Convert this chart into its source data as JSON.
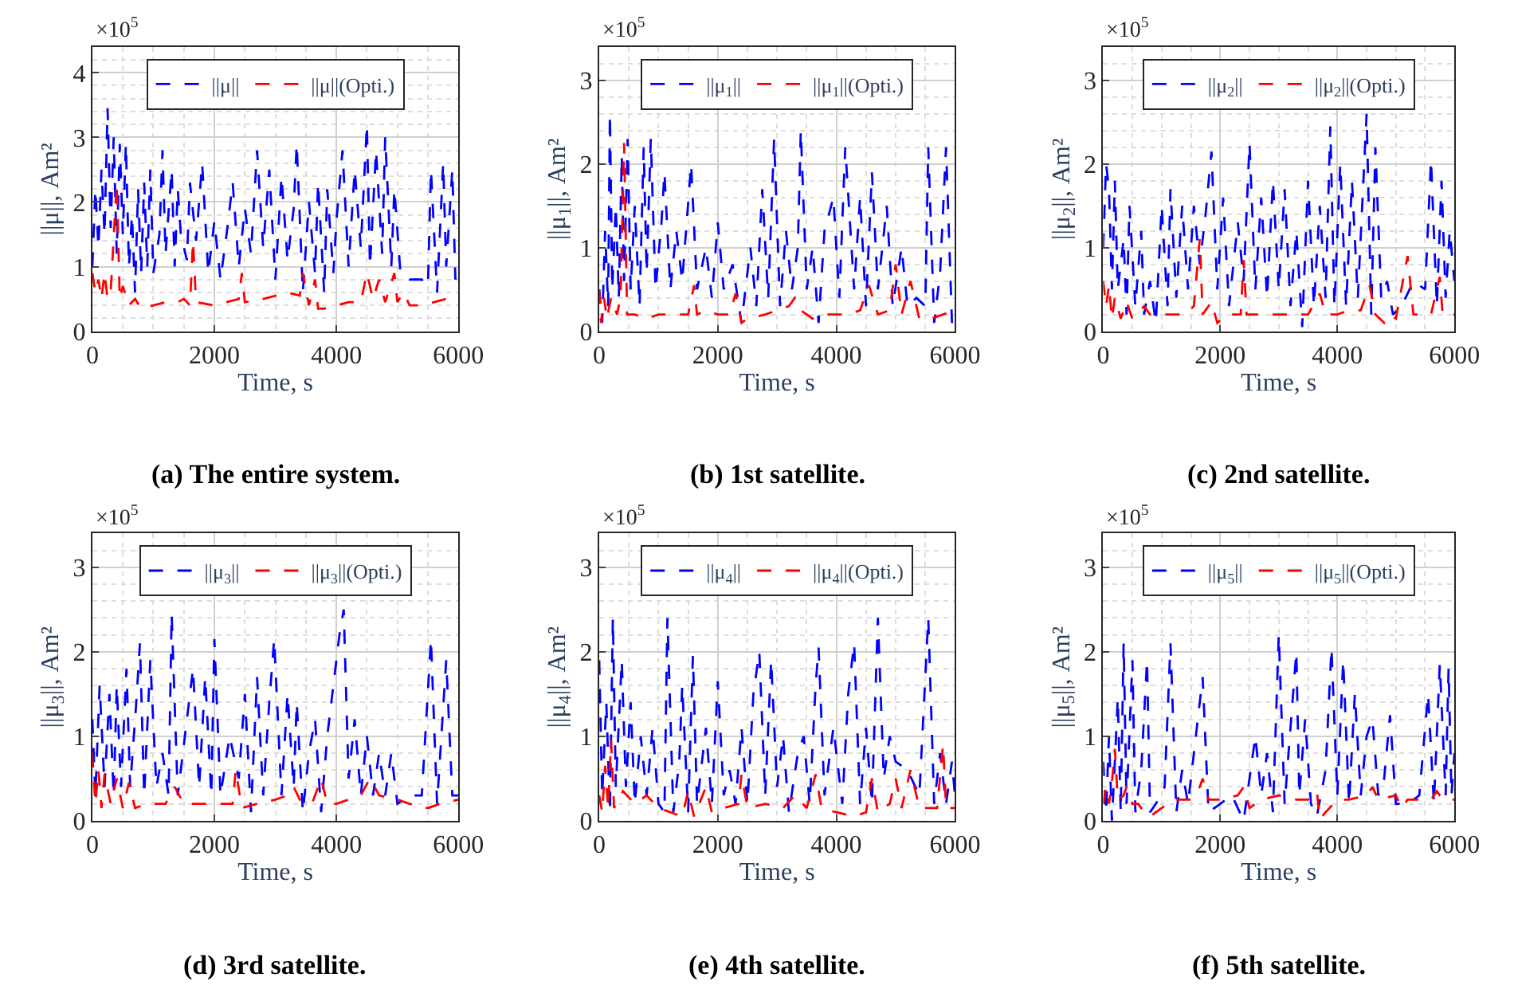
{
  "chart_data": [
    {
      "type": "line",
      "title": "(a) The entire system.",
      "xlabel": "Time, s",
      "ylabel": "||μ||, Am²",
      "annotations": [
        "×10$^{5}$"
      ],
      "xlim": [
        0,
        6000
      ],
      "xticks": [
        0,
        2000,
        4000,
        6000
      ],
      "ylim": [
        0,
        4.4
      ],
      "yticks": [
        0,
        1,
        2,
        3,
        4
      ],
      "grid": true,
      "legend": "top",
      "line_style": "dashed",
      "series": [
        {
          "name": "||μ||",
          "color": "#0000ff",
          "x": [
            0,
            50,
            100,
            150,
            200,
            250,
            300,
            350,
            400,
            450,
            500,
            550,
            600,
            650,
            700,
            750,
            800,
            850,
            900,
            950,
            1000,
            1100,
            1150,
            1200,
            1300,
            1350,
            1400,
            1450,
            1550,
            1600,
            1700,
            1800,
            1900,
            2000,
            2100,
            2200,
            2300,
            2400,
            2500,
            2600,
            2700,
            2800,
            2900,
            3000,
            3100,
            3200,
            3300,
            3350,
            3450,
            3550,
            3650,
            3700,
            3800,
            3850,
            3950,
            4000,
            4100,
            4200,
            4300,
            4400,
            4500,
            4550,
            4650,
            4750,
            4800,
            4900,
            4950,
            5050,
            5200,
            5400,
            5500,
            5550,
            5650,
            5750,
            5800,
            5900,
            5950,
            6000
          ],
          "values": [
            1.0,
            2.2,
            1.3,
            2.5,
            1.5,
            3.45,
            1.6,
            3.0,
            1.2,
            2.9,
            1.5,
            2.9,
            1.0,
            1.8,
            0.6,
            2.2,
            0.9,
            2.3,
            1.0,
            2.5,
            0.9,
            1.5,
            2.8,
            1.2,
            2.5,
            1.0,
            2.2,
            1.5,
            1.1,
            2.3,
            1.4,
            2.6,
            0.9,
            1.7,
            0.8,
            1.5,
            2.3,
            1.0,
            1.9,
            1.2,
            2.8,
            1.3,
            2.5,
            0.8,
            2.4,
            1.1,
            1.9,
            2.9,
            0.6,
            2.0,
            0.9,
            2.3,
            0.6,
            2.2,
            0.9,
            1.7,
            2.8,
            1.0,
            2.5,
            1.3,
            3.2,
            1.0,
            2.8,
            1.2,
            3.0,
            1.0,
            2.2,
            0.9,
            0.8,
            0.8,
            0.7,
            2.5,
            0.6,
            2.6,
            1.0,
            2.5,
            0.8,
            1.0
          ]
        },
        {
          "name": "||μ||(Opti.)",
          "color": "#ff0000",
          "x": [
            0,
            50,
            100,
            150,
            200,
            250,
            300,
            400,
            450,
            500,
            600,
            700,
            800,
            1000,
            1200,
            1400,
            1500,
            1600,
            1650,
            1700,
            2000,
            2200,
            2400,
            2450,
            2500,
            2800,
            3000,
            3200,
            3400,
            3450,
            3550,
            3650,
            3700,
            3800,
            4000,
            4200,
            4400,
            4500,
            4600,
            4700,
            4800,
            4950,
            5000,
            5100,
            5200,
            5400,
            5600,
            5800,
            6000
          ],
          "values": [
            0.9,
            0.6,
            0.8,
            0.5,
            0.9,
            0.5,
            0.6,
            2.3,
            0.5,
            0.7,
            0.4,
            0.5,
            0.35,
            0.4,
            0.45,
            0.45,
            0.5,
            0.4,
            1.4,
            0.45,
            0.4,
            0.45,
            0.5,
            0.9,
            0.45,
            0.5,
            0.55,
            0.6,
            0.55,
            0.9,
            0.4,
            0.8,
            0.35,
            0.35,
            0.4,
            0.45,
            0.45,
            0.9,
            0.5,
            0.8,
            0.45,
            0.9,
            0.45,
            0.6,
            0.4,
            0.4,
            0.45,
            0.5,
            0.5
          ]
        }
      ]
    },
    {
      "type": "line",
      "title": "(b) 1st satellite.",
      "xlabel": "Time, s",
      "ylabel": "||μ$_{1}$||, Am²",
      "annotations": [
        "×10$^{5}$"
      ],
      "xlim": [
        0,
        6000
      ],
      "xticks": [
        0,
        2000,
        4000,
        6000
      ],
      "ylim": [
        0,
        3.4
      ],
      "yticks": [
        0,
        1,
        2,
        3
      ],
      "grid": true,
      "legend": "top",
      "line_style": "dashed",
      "series": [
        {
          "name": "||μ$_{1}$||",
          "color": "#0000ff",
          "x": [
            0,
            50,
            100,
            150,
            180,
            220,
            280,
            330,
            380,
            420,
            480,
            530,
            600,
            680,
            750,
            800,
            870,
            950,
            1050,
            1100,
            1200,
            1300,
            1400,
            1550,
            1650,
            1800,
            1900,
            2000,
            2100,
            2250,
            2400,
            2550,
            2650,
            2750,
            2850,
            2950,
            3050,
            3150,
            3250,
            3350,
            3400,
            3500,
            3600,
            3700,
            3800,
            3950,
            4050,
            4150,
            4300,
            4400,
            4500,
            4600,
            4700,
            4850,
            4950,
            5100,
            5200,
            5350,
            5500,
            5550,
            5650,
            5750,
            5850,
            5950,
            6000
          ],
          "values": [
            0.5,
            0.1,
            1.2,
            0.3,
            2.6,
            0.5,
            1.5,
            0.4,
            2.1,
            0.6,
            2.3,
            0.5,
            1.5,
            0.3,
            2.2,
            0.7,
            2.3,
            0.5,
            1.3,
            1.9,
            0.5,
            1.2,
            0.6,
            2.0,
            0.5,
            1.0,
            0.4,
            1.3,
            0.5,
            0.8,
            0.1,
            1.0,
            0.3,
            1.7,
            0.4,
            2.3,
            0.3,
            1.2,
            0.5,
            1.0,
            2.4,
            0.5,
            1.0,
            0.1,
            1.2,
            1.6,
            0.4,
            2.2,
            0.5,
            1.6,
            0.3,
            1.9,
            0.5,
            1.5,
            0.3,
            1.0,
            0.3,
            0.4,
            0.3,
            2.2,
            0.1,
            0.7,
            2.2,
            0.1,
            0.2
          ]
        },
        {
          "name": "||μ$_{1}$||(Opti.)",
          "color": "#ff0000",
          "x": [
            0,
            30,
            80,
            130,
            200,
            300,
            360,
            420,
            470,
            600,
            800,
            1000,
            1200,
            1500,
            1600,
            1650,
            1800,
            2000,
            2200,
            2300,
            2400,
            2500,
            2800,
            3000,
            3200,
            3300,
            3400,
            3600,
            3800,
            4000,
            4200,
            4400,
            4550,
            4700,
            4900,
            5000,
            5100,
            5250,
            5400,
            5600,
            5800,
            6000
          ],
          "values": [
            0.5,
            0.1,
            0.4,
            0.15,
            0.4,
            0.2,
            0.4,
            2.25,
            0.2,
            0.2,
            0.15,
            0.2,
            0.2,
            0.2,
            0.55,
            0.2,
            0.25,
            0.2,
            0.2,
            0.45,
            0.1,
            0.15,
            0.2,
            0.25,
            0.3,
            0.4,
            0.25,
            0.15,
            0.2,
            0.2,
            0.2,
            0.25,
            0.55,
            0.2,
            0.25,
            0.8,
            0.2,
            0.6,
            0.15,
            0.15,
            0.2,
            0.25
          ]
        }
      ]
    },
    {
      "type": "line",
      "title": "(c) 2nd satellite.",
      "xlabel": "Time, s",
      "ylabel": "||μ$_{2}$||, Am²",
      "annotations": [
        "×10$^{5}$"
      ],
      "xlim": [
        0,
        6000
      ],
      "xticks": [
        0,
        2000,
        4000,
        6000
      ],
      "ylim": [
        0,
        3.4
      ],
      "yticks": [
        0,
        1,
        2,
        3
      ],
      "grid": true,
      "legend": "top",
      "line_style": "dashed",
      "series": [
        {
          "name": "||μ$_{2}$||",
          "color": "#0000ff",
          "x": [
            0,
            50,
            100,
            150,
            200,
            250,
            350,
            400,
            450,
            550,
            650,
            700,
            800,
            900,
            1000,
            1100,
            1150,
            1250,
            1350,
            1450,
            1550,
            1650,
            1750,
            1850,
            1950,
            2050,
            2150,
            2300,
            2400,
            2500,
            2600,
            2700,
            2800,
            2900,
            3000,
            3100,
            3200,
            3300,
            3400,
            3500,
            3600,
            3700,
            3800,
            3880,
            3950,
            4050,
            4150,
            4250,
            4350,
            4500,
            4580,
            4650,
            4750,
            4850,
            4950,
            5100,
            5300,
            5500,
            5600,
            5700,
            5780,
            5850,
            5920,
            6000
          ],
          "values": [
            1.0,
            2.0,
            1.7,
            0.5,
            1.8,
            0.5,
            1.1,
            0.2,
            1.5,
            0.3,
            1.2,
            0.2,
            0.6,
            0.1,
            1.5,
            0.3,
            1.7,
            0.4,
            1.5,
            0.5,
            1.5,
            0.8,
            1.4,
            2.15,
            0.5,
            1.6,
            0.3,
            1.3,
            0.6,
            2.25,
            0.5,
            1.6,
            0.4,
            1.8,
            0.5,
            1.7,
            0.3,
            1.2,
            0.05,
            1.8,
            0.3,
            1.5,
            0.4,
            2.45,
            0.3,
            2.0,
            0.3,
            1.8,
            0.4,
            2.6,
            0.2,
            2.2,
            0.4,
            0.6,
            0.2,
            0.3,
            0.6,
            0.5,
            2.05,
            0.3,
            1.8,
            0.4,
            1.2,
            0.6
          ]
        },
        {
          "name": "||μ$_{2}$||(Opti.)",
          "color": "#ff0000",
          "x": [
            0,
            50,
            100,
            150,
            200,
            300,
            400,
            500,
            700,
            800,
            1000,
            1200,
            1400,
            1550,
            1650,
            1700,
            1850,
            1950,
            2100,
            2350,
            2400,
            2450,
            2700,
            3000,
            3200,
            3500,
            3700,
            3800,
            4000,
            4200,
            4400,
            4550,
            4650,
            4800,
            4900,
            5000,
            5200,
            5300,
            5600,
            5750,
            5800,
            6000
          ],
          "values": [
            0.6,
            0.3,
            0.55,
            0.15,
            0.4,
            0.15,
            0.35,
            0.15,
            0.3,
            0.2,
            0.2,
            0.2,
            0.2,
            0.3,
            1.1,
            0.2,
            0.35,
            0.1,
            0.2,
            0.2,
            0.85,
            0.2,
            0.2,
            0.2,
            0.2,
            0.2,
            0.45,
            0.2,
            0.2,
            0.25,
            0.25,
            0.55,
            0.2,
            0.1,
            0.2,
            0.15,
            0.9,
            0.2,
            0.2,
            0.65,
            0.2,
            0.2
          ]
        }
      ]
    },
    {
      "type": "line",
      "title": "(d) 3rd satellite.",
      "xlabel": "Time, s",
      "ylabel": "||μ$_{3}$||, Am²",
      "annotations": [
        "×10$^{5}$"
      ],
      "xlim": [
        0,
        6000
      ],
      "xticks": [
        0,
        2000,
        4000,
        6000
      ],
      "ylim": [
        0,
        3.4
      ],
      "yticks": [
        0,
        1,
        2,
        3
      ],
      "grid": true,
      "legend": "top",
      "line_style": "dashed",
      "series": [
        {
          "name": "||μ$_{3}$||",
          "color": "#0000ff",
          "x": [
            0,
            50,
            120,
            200,
            280,
            350,
            400,
            470,
            560,
            620,
            720,
            780,
            850,
            950,
            1050,
            1150,
            1250,
            1300,
            1400,
            1550,
            1650,
            1750,
            1850,
            1950,
            2000,
            2100,
            2250,
            2400,
            2500,
            2600,
            2700,
            2800,
            2900,
            2980,
            3100,
            3200,
            3300,
            3350,
            3450,
            3550,
            3650,
            3750,
            3850,
            3950,
            4050,
            4120,
            4200,
            4300,
            4400,
            4500,
            4600,
            4700,
            4800,
            4900,
            5000,
            5200,
            5400,
            5550,
            5650,
            5800,
            5900,
            6000
          ],
          "values": [
            1.2,
            0.3,
            1.6,
            0.4,
            1.5,
            0.3,
            1.6,
            0.4,
            1.8,
            0.4,
            1.4,
            2.1,
            0.3,
            1.9,
            0.4,
            0.8,
            0.3,
            2.45,
            0.3,
            1.2,
            1.8,
            0.4,
            1.7,
            0.3,
            2.15,
            0.3,
            1.0,
            0.5,
            1.5,
            0.1,
            1.7,
            0.3,
            1.4,
            2.15,
            0.3,
            1.5,
            0.4,
            1.4,
            0.1,
            0.8,
            1.2,
            0.1,
            1.0,
            1.6,
            2.2,
            2.5,
            0.5,
            1.2,
            0.3,
            1.0,
            0.3,
            0.8,
            0.3,
            0.8,
            0.2,
            0.3,
            0.3,
            2.15,
            0.2,
            1.9,
            0.3,
            0.3
          ]
        },
        {
          "name": "||μ$_{3}$||(Opti.)",
          "color": "#ff0000",
          "x": [
            0,
            50,
            100,
            150,
            200,
            300,
            400,
            500,
            600,
            700,
            900,
            1200,
            1350,
            1500,
            1800,
            2000,
            2300,
            2350,
            2450,
            2700,
            3000,
            3200,
            3300,
            3400,
            3600,
            3750,
            3850,
            4000,
            4200,
            4400,
            4550,
            4700,
            5000,
            5200,
            5500,
            5700,
            6000
          ],
          "values": [
            0.8,
            0.2,
            0.6,
            0.15,
            0.55,
            0.2,
            0.5,
            0.15,
            0.45,
            0.15,
            0.2,
            0.2,
            0.4,
            0.2,
            0.2,
            0.2,
            0.2,
            0.6,
            0.15,
            0.2,
            0.25,
            0.3,
            0.4,
            0.25,
            0.2,
            0.5,
            0.2,
            0.2,
            0.25,
            0.3,
            0.5,
            0.3,
            0.25,
            0.2,
            0.15,
            0.2,
            0.25
          ]
        }
      ]
    },
    {
      "type": "line",
      "title": "(e) 4th satellite.",
      "xlabel": "Time, s",
      "ylabel": "||μ$_{4}$||, Am²",
      "annotations": [
        "×10$^{5}$"
      ],
      "xlim": [
        0,
        6000
      ],
      "xticks": [
        0,
        2000,
        4000,
        6000
      ],
      "ylim": [
        0,
        3.4
      ],
      "yticks": [
        0,
        1,
        2,
        3
      ],
      "grid": true,
      "legend": "top",
      "line_style": "dashed",
      "series": [
        {
          "name": "||μ$_{4}$||",
          "color": "#0000ff",
          "x": [
            0,
            50,
            120,
            180,
            230,
            280,
            380,
            450,
            530,
            600,
            700,
            800,
            900,
            1000,
            1100,
            1150,
            1250,
            1350,
            1400,
            1500,
            1580,
            1650,
            1800,
            1900,
            2000,
            2100,
            2200,
            2300,
            2400,
            2500,
            2600,
            2700,
            2800,
            2900,
            3000,
            3100,
            3200,
            3350,
            3450,
            3550,
            3650,
            3700,
            3800,
            3950,
            4100,
            4200,
            4300,
            4400,
            4500,
            4600,
            4700,
            4800,
            4900,
            5000,
            5200,
            5400,
            5550,
            5650,
            5750,
            5850,
            5950,
            6000
          ],
          "values": [
            1.9,
            0.3,
            1.4,
            0.1,
            2.4,
            0.4,
            1.9,
            0.4,
            1.4,
            0.2,
            1.0,
            0.3,
            1.1,
            0.2,
            0.1,
            2.4,
            0.1,
            0.7,
            1.6,
            0.1,
            1.95,
            0.2,
            1.1,
            0.2,
            1.65,
            0.3,
            0.6,
            0.2,
            1.1,
            0.2,
            1.5,
            2.0,
            0.3,
            1.9,
            0.4,
            1.0,
            0.1,
            0.8,
            1.0,
            0.2,
            1.6,
            2.05,
            0.3,
            1.1,
            0.2,
            1.5,
            2.1,
            0.2,
            1.1,
            0.2,
            2.4,
            0.5,
            1.0,
            0.7,
            0.6,
            0.3,
            2.4,
            0.2,
            0.8,
            0.2,
            0.7,
            0.3
          ]
        },
        {
          "name": "||μ$_{4}$||(Opti.)",
          "color": "#ff0000",
          "x": [
            0,
            50,
            100,
            150,
            200,
            250,
            400,
            600,
            800,
            1000,
            1200,
            1400,
            1500,
            1600,
            1800,
            1900,
            2100,
            2350,
            2400,
            2500,
            2800,
            3100,
            3300,
            3500,
            3650,
            3750,
            4000,
            4300,
            4500,
            4600,
            4700,
            4900,
            5000,
            5100,
            5250,
            5400,
            5700,
            5800,
            5850,
            6000
          ],
          "values": [
            0.3,
            0.1,
            0.65,
            0.15,
            0.95,
            0.15,
            0.35,
            0.2,
            0.3,
            0.15,
            0.1,
            0.05,
            0.35,
            0.05,
            0.4,
            0.1,
            0.15,
            0.2,
            0.55,
            0.15,
            0.2,
            0.15,
            0.3,
            0.15,
            0.55,
            0.15,
            0.1,
            0.05,
            0.1,
            0.5,
            0.1,
            0.2,
            0.5,
            0.15,
            0.6,
            0.15,
            0.15,
            0.9,
            0.15,
            0.15
          ]
        }
      ]
    },
    {
      "type": "line",
      "title": "(f) 5th satellite.",
      "xlabel": "Time, s",
      "ylabel": "||μ$_{5}$||, Am²",
      "annotations": [
        "×10$^{5}$"
      ],
      "xlim": [
        0,
        6000
      ],
      "xticks": [
        0,
        2000,
        4000,
        6000
      ],
      "ylim": [
        0,
        3.4
      ],
      "yticks": [
        0,
        1,
        2,
        3
      ],
      "grid": true,
      "legend": "top",
      "line_style": "dashed",
      "series": [
        {
          "name": "||μ$_{5}$||",
          "color": "#0000ff",
          "x": [
            0,
            50,
            100,
            150,
            200,
            250,
            300,
            350,
            400,
            500,
            550,
            650,
            750,
            800,
            900,
            1050,
            1150,
            1250,
            1350,
            1450,
            1700,
            1800,
            2000,
            2200,
            2400,
            2600,
            2700,
            2800,
            2900,
            3000,
            3100,
            3300,
            3350,
            3450,
            3550,
            3650,
            3800,
            3900,
            4000,
            4100,
            4200,
            4300,
            4400,
            4500,
            4600,
            4700,
            4800,
            4900,
            5000,
            5200,
            5400,
            5550,
            5650,
            5750,
            5850,
            5900,
            5950,
            6000
          ],
          "values": [
            0.7,
            0.1,
            1.0,
            0.0,
            0.7,
            1.45,
            0.1,
            2.1,
            0.2,
            1.9,
            0.1,
            0.6,
            1.9,
            0.1,
            0.2,
            0.4,
            2.1,
            0.1,
            0.6,
            0.2,
            1.7,
            0.1,
            0.2,
            0.3,
            0.0,
            1.0,
            0.3,
            0.8,
            0.1,
            2.2,
            0.2,
            2.0,
            0.3,
            1.2,
            0.2,
            0.05,
            0.6,
            2.05,
            0.3,
            1.9,
            0.2,
            1.5,
            0.3,
            1.0,
            1.2,
            0.3,
            0.5,
            1.25,
            0.2,
            0.2,
            0.3,
            1.5,
            0.2,
            1.85,
            0.3,
            1.8,
            0.3,
            0.8
          ]
        },
        {
          "name": "||μ$_{5}$||(Opti.)",
          "color": "#ff0000",
          "x": [
            0,
            50,
            100,
            150,
            200,
            250,
            350,
            400,
            500,
            600,
            700,
            800,
            1000,
            1200,
            1500,
            1650,
            1700,
            1800,
            2000,
            2300,
            2400,
            2500,
            2700,
            3000,
            3300,
            3500,
            3650,
            3700,
            3800,
            4000,
            4200,
            4500,
            4600,
            4700,
            5000,
            5100,
            5200,
            5400,
            5600,
            5700,
            5800,
            6000
          ],
          "values": [
            0.2,
            0.4,
            0.2,
            0.45,
            0.85,
            0.25,
            0.3,
            0.4,
            0.2,
            0.2,
            0.1,
            0.05,
            0.15,
            0.25,
            0.25,
            0.4,
            0.5,
            0.25,
            0.25,
            0.3,
            0.4,
            0.15,
            0.25,
            0.3,
            0.25,
            0.25,
            0.35,
            0.02,
            0.1,
            0.25,
            0.25,
            0.3,
            0.4,
            0.25,
            0.3,
            0.15,
            0.25,
            0.25,
            0.25,
            0.35,
            0.25,
            0.25
          ]
        }
      ]
    }
  ]
}
